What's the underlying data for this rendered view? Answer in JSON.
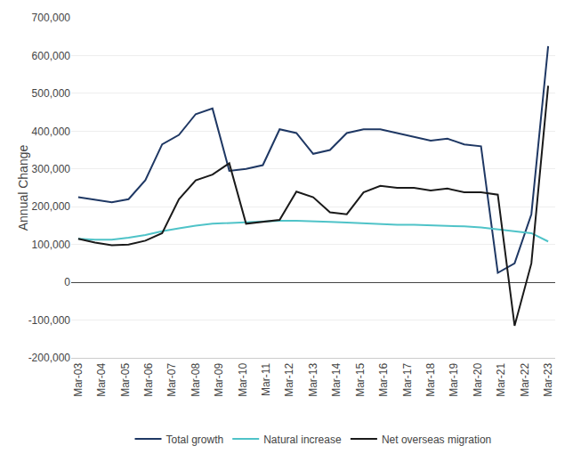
{
  "chart_data": {
    "type": "line",
    "ylabel": "Annual Change",
    "xlim": [
      -0.3,
      20.3
    ],
    "xticks": [
      {
        "value": 0,
        "label": "Mar-03"
      },
      {
        "value": 1,
        "label": "Mar-04"
      },
      {
        "value": 2,
        "label": "Mar-05"
      },
      {
        "value": 3,
        "label": "Mar-06"
      },
      {
        "value": 4,
        "label": "Mar-07"
      },
      {
        "value": 5,
        "label": "Mar-08"
      },
      {
        "value": 6,
        "label": "Mar-09"
      },
      {
        "value": 7,
        "label": "Mar-10"
      },
      {
        "value": 8,
        "label": "Mar-11"
      },
      {
        "value": 9,
        "label": "Mar-12"
      },
      {
        "value": 10,
        "label": "Mar-13"
      },
      {
        "value": 11,
        "label": "Mar-14"
      },
      {
        "value": 12,
        "label": "Mar-15"
      },
      {
        "value": 13,
        "label": "Mar-16"
      },
      {
        "value": 14,
        "label": "Mar-17"
      },
      {
        "value": 15,
        "label": "Mar-18"
      },
      {
        "value": 16,
        "label": "Mar-19"
      },
      {
        "value": 17,
        "label": "Mar-20"
      },
      {
        "value": 18,
        "label": "Mar-21"
      },
      {
        "value": 19,
        "label": "Mar-22"
      },
      {
        "value": 20,
        "label": "Mar-23"
      }
    ],
    "ylim": [
      -200000,
      700000
    ],
    "yticks": [
      {
        "value": -200000,
        "label": "-200,000"
      },
      {
        "value": -100000,
        "label": "-100,000"
      },
      0,
      {
        "value": 100000,
        "label": "100,000"
      },
      {
        "value": 200000,
        "label": "200,000"
      },
      {
        "value": 300000,
        "label": "300,000"
      },
      {
        "value": 400000,
        "label": "400,000"
      },
      {
        "value": 500000,
        "label": "500,000"
      },
      {
        "value": 600000,
        "label": "600,000"
      },
      {
        "value": 700000,
        "label": "700,000"
      }
    ],
    "series": [
      {
        "name": "Total growth",
        "color": "#1f3864",
        "values": [
          225000,
          218000,
          212000,
          220000,
          270000,
          365000,
          390000,
          445000,
          460000,
          295000,
          300000,
          310000,
          405000,
          395000,
          340000,
          350000,
          395000,
          405000,
          405000,
          395000,
          385000,
          375000,
          380000,
          365000,
          360000,
          25000,
          50000,
          180000,
          625000
        ]
      },
      {
        "name": "Natural increase",
        "color": "#4fc3c8",
        "values": [
          115000,
          113000,
          113000,
          118000,
          125000,
          135000,
          143000,
          150000,
          155000,
          157000,
          160000,
          162000,
          163000,
          163000,
          162000,
          160000,
          158000,
          156000,
          154000,
          152000,
          152000,
          151000,
          150000,
          148000,
          145000,
          140000,
          135000,
          130000,
          108000
        ]
      },
      {
        "name": "Net overseas migration",
        "color": "#1a1a1a",
        "values": [
          115000,
          105000,
          98000,
          100000,
          110000,
          130000,
          220000,
          270000,
          285000,
          315000,
          155000,
          160000,
          165000,
          240000,
          225000,
          185000,
          180000,
          238000,
          255000,
          250000,
          250000,
          243000,
          248000,
          238000,
          238000,
          232000,
          -115000,
          50000,
          520000
        ]
      }
    ],
    "grid": true,
    "legend": "bottom"
  }
}
